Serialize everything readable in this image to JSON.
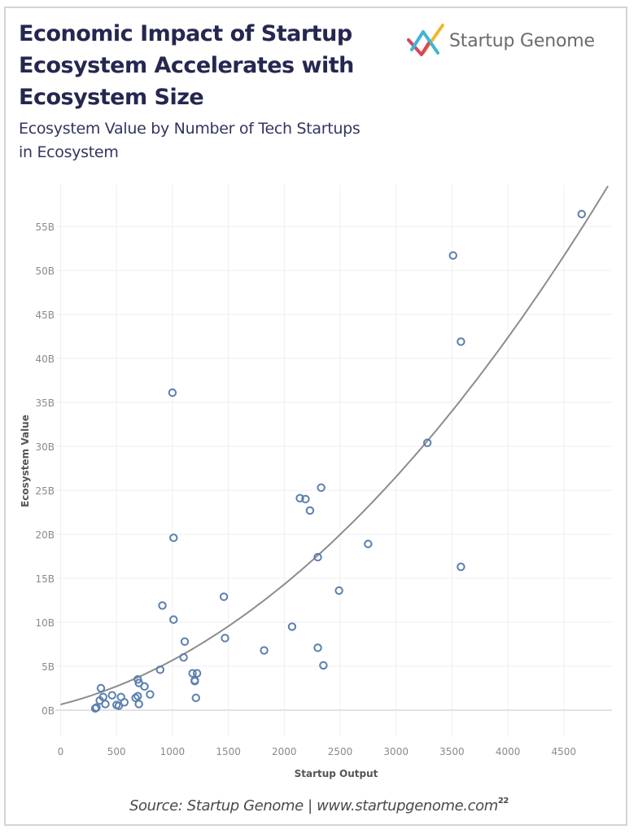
{
  "header": {
    "title": "Economic Impact of Startup Ecosystem Accelerates with Ecosystem Size",
    "subtitle": "Ecosystem Value by Number of Tech Startups in Ecosystem",
    "logo_text": "Startup Genome",
    "logo_icon": "startup-genome-logo-icon"
  },
  "footer": {
    "source": "Source: Startup Genome | www.startupgenome.com",
    "footnote": "22"
  },
  "colors": {
    "title": "#262750",
    "point": "#5b7fae",
    "trend": "#8c8c8c",
    "grid": "#efefef",
    "logo_red": "#d9445a",
    "logo_blue": "#3fb6d0",
    "logo_yellow": "#f2b631"
  },
  "chart_data": {
    "type": "scatter",
    "title": "Ecosystem Value by Number of Tech Startups in Ecosystem",
    "xlabel": "Startup Output",
    "ylabel": "Ecosystem Value",
    "xlim": [
      0,
      4900
    ],
    "ylim": [
      -3,
      60
    ],
    "xticks": [
      0,
      500,
      1000,
      1500,
      2000,
      2500,
      3000,
      3500,
      4000,
      4500
    ],
    "xtick_labels": [
      "0",
      "500",
      "1000",
      "1500",
      "2000",
      "2500",
      "3000",
      "3500",
      "4000",
      "4500"
    ],
    "yticks": [
      0,
      5,
      10,
      15,
      20,
      25,
      30,
      35,
      40,
      45,
      50,
      55
    ],
    "ytick_labels": [
      "0B",
      "5B",
      "10B",
      "15B",
      "20B",
      "25B",
      "30B",
      "35B",
      "40B",
      "45B",
      "50B",
      "55B"
    ],
    "grid": true,
    "legend": "none",
    "y_units": "billions USD",
    "points": [
      {
        "x": 360,
        "y": 2.5
      },
      {
        "x": 320,
        "y": 0.3
      },
      {
        "x": 310,
        "y": 0.2
      },
      {
        "x": 350,
        "y": 1.1
      },
      {
        "x": 380,
        "y": 1.5
      },
      {
        "x": 400,
        "y": 0.7
      },
      {
        "x": 460,
        "y": 1.7
      },
      {
        "x": 540,
        "y": 1.5
      },
      {
        "x": 520,
        "y": 0.5
      },
      {
        "x": 500,
        "y": 0.6
      },
      {
        "x": 570,
        "y": 0.9
      },
      {
        "x": 670,
        "y": 1.4
      },
      {
        "x": 690,
        "y": 1.6
      },
      {
        "x": 700,
        "y": 0.7
      },
      {
        "x": 690,
        "y": 3.5
      },
      {
        "x": 700,
        "y": 3.1
      },
      {
        "x": 750,
        "y": 2.7
      },
      {
        "x": 800,
        "y": 1.8
      },
      {
        "x": 890,
        "y": 4.6
      },
      {
        "x": 910,
        "y": 11.9
      },
      {
        "x": 1010,
        "y": 10.3
      },
      {
        "x": 1000,
        "y": 36.1
      },
      {
        "x": 1010,
        "y": 19.6
      },
      {
        "x": 1110,
        "y": 7.8
      },
      {
        "x": 1100,
        "y": 6.0
      },
      {
        "x": 1180,
        "y": 4.2
      },
      {
        "x": 1220,
        "y": 4.2
      },
      {
        "x": 1200,
        "y": 3.4
      },
      {
        "x": 1200,
        "y": 3.3
      },
      {
        "x": 1210,
        "y": 1.4
      },
      {
        "x": 1460,
        "y": 12.9
      },
      {
        "x": 1470,
        "y": 8.2
      },
      {
        "x": 1820,
        "y": 6.8
      },
      {
        "x": 2070,
        "y": 9.5
      },
      {
        "x": 2140,
        "y": 24.1
      },
      {
        "x": 2190,
        "y": 24.0
      },
      {
        "x": 2230,
        "y": 22.7
      },
      {
        "x": 2330,
        "y": 25.3
      },
      {
        "x": 2300,
        "y": 17.4
      },
      {
        "x": 2750,
        "y": 18.9
      },
      {
        "x": 2490,
        "y": 13.6
      },
      {
        "x": 2300,
        "y": 7.1
      },
      {
        "x": 2350,
        "y": 5.1
      },
      {
        "x": 3280,
        "y": 30.4
      },
      {
        "x": 3580,
        "y": 16.3
      },
      {
        "x": 3580,
        "y": 41.9
      },
      {
        "x": 3510,
        "y": 51.7
      },
      {
        "x": 4660,
        "y": 56.4
      }
    ],
    "trendline": {
      "type": "polynomial",
      "coefficients": [
        0.65,
        0.00323,
        1.8e-06
      ],
      "x_range": [
        0,
        4895
      ]
    }
  }
}
